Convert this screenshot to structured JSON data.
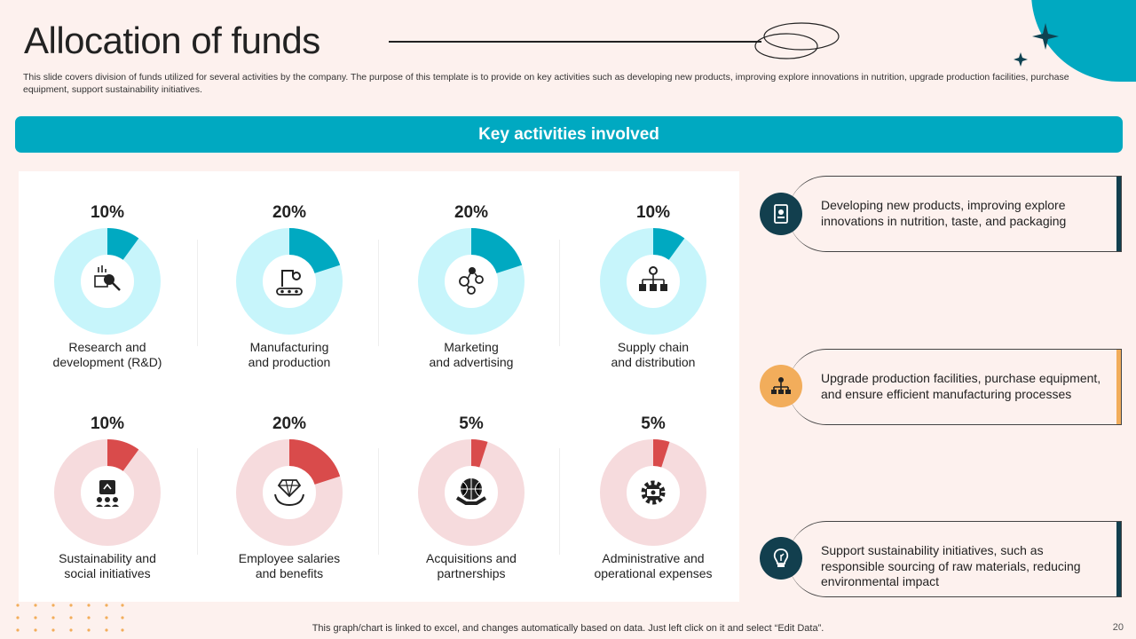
{
  "title": "Allocation of funds",
  "subtitle": "This slide covers division of funds utilized for several activities by the company. The purpose of this template is to provide on key activities such as developing new products, improving explore innovations in nutrition, upgrade production facilities, purchase equipment, support sustainability initiatives.",
  "banner": "Key activities involved",
  "colors": {
    "teal": "#00a9c1",
    "light_teal": "#c7f5fb",
    "red": "#d94b4b",
    "light_red": "#f6dbdd",
    "dark_teal": "#123f4e",
    "orange": "#f2ad5b"
  },
  "chart_data": {
    "type": "pie",
    "charts": [
      {
        "label_line1": "Research and",
        "label_line2": "development (R&D)",
        "value": 10,
        "display": "10%",
        "color": "#00a9c1",
        "track": "#c7f5fb",
        "icon": "research-icon"
      },
      {
        "label_line1": "Manufacturing",
        "label_line2": "and production",
        "value": 20,
        "display": "20%",
        "color": "#00a9c1",
        "track": "#c7f5fb",
        "icon": "factory-icon"
      },
      {
        "label_line1": "Marketing",
        "label_line2": "and advertising",
        "value": 20,
        "display": "20%",
        "color": "#00a9c1",
        "track": "#c7f5fb",
        "icon": "marketing-icon"
      },
      {
        "label_line1": "Supply chain",
        "label_line2": "and distribution",
        "value": 10,
        "display": "10%",
        "color": "#00a9c1",
        "track": "#c7f5fb",
        "icon": "supply-chain-icon"
      },
      {
        "label_line1": "Sustainability and",
        "label_line2": "social initiatives",
        "value": 10,
        "display": "10%",
        "color": "#d94b4b",
        "track": "#f6dbdd",
        "icon": "community-icon"
      },
      {
        "label_line1": "Employee salaries",
        "label_line2": "and benefits",
        "value": 20,
        "display": "20%",
        "color": "#d94b4b",
        "track": "#f6dbdd",
        "icon": "benefits-icon"
      },
      {
        "label_line1": "Acquisitions and",
        "label_line2": "partnerships",
        "value": 5,
        "display": "5%",
        "color": "#d94b4b",
        "track": "#f6dbdd",
        "icon": "handshake-icon"
      },
      {
        "label_line1": "Administrative and",
        "label_line2": "operational expenses",
        "value": 5,
        "display": "5%",
        "color": "#d94b4b",
        "track": "#f6dbdd",
        "icon": "gear-money-icon"
      }
    ]
  },
  "cards": [
    {
      "text": "Developing new products, improving explore innovations in nutrition, taste, and packaging",
      "accent": "#123f4e",
      "icon": "product-icon"
    },
    {
      "text": "Upgrade production facilities, purchase equipment, and ensure efficient manufacturing processes",
      "accent": "#f2ad5b",
      "icon": "network-icon"
    },
    {
      "text": "Support sustainability initiatives, such as responsible sourcing of raw materials, reducing environmental impact",
      "accent": "#123f4e",
      "icon": "bulb-leaf-icon"
    }
  ],
  "footer": "This graph/chart is linked to excel,  and changes automatically based on data. Just left click on it and select “Edit Data”.",
  "page_number": "20"
}
